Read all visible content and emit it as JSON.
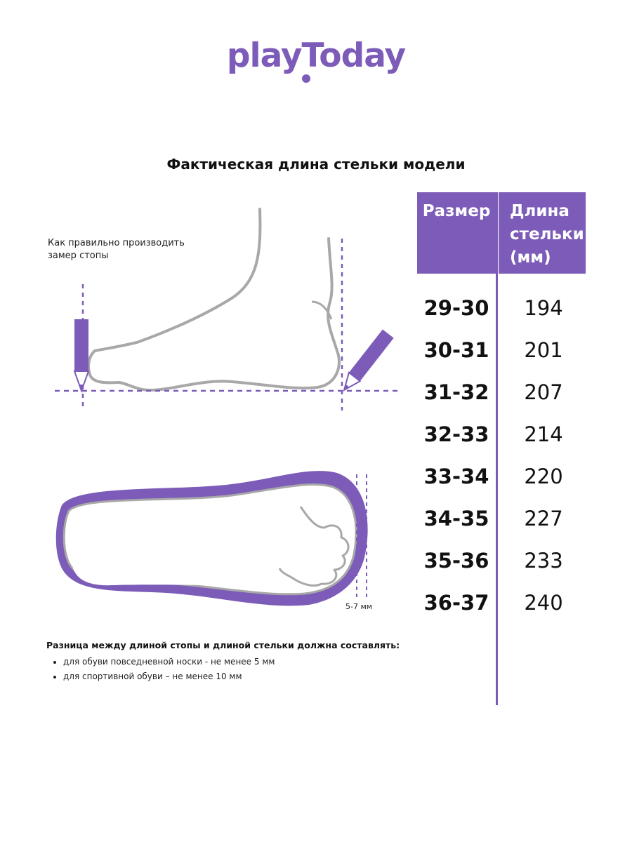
{
  "brand": {
    "logo_text": "playToday"
  },
  "title": "Фактическая длина стельки модели",
  "table": {
    "header_size": "Размер",
    "header_length_lines": [
      "Длина",
      "стельки",
      "(мм)"
    ],
    "rows": [
      {
        "size": "29-30",
        "length": "194"
      },
      {
        "size": "30-31",
        "length": "201"
      },
      {
        "size": "31-32",
        "length": "207"
      },
      {
        "size": "32-33",
        "length": "214"
      },
      {
        "size": "33-34",
        "length": "220"
      },
      {
        "size": "34-35",
        "length": "227"
      },
      {
        "size": "35-36",
        "length": "233"
      },
      {
        "size": "36-37",
        "length": "240"
      }
    ]
  },
  "measure_hint_lines": [
    "Как правильно производить",
    "замер стопы"
  ],
  "gap_label": "5-7 мм",
  "note": {
    "title": "Разница между длиной стопы и длиной стельки должна составлять:",
    "items": [
      "для обуви повседневной носки -  не менее 5 мм",
      "для спортивной обуви – не менее 10 мм"
    ]
  },
  "colors": {
    "accent": "#7c5cb8",
    "outline": "#a8a8a8"
  }
}
